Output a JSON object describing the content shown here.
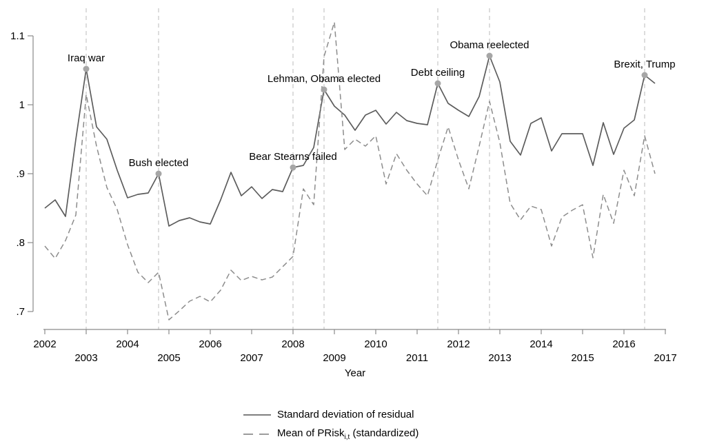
{
  "figure": {
    "background": "#ffffff"
  },
  "legend": {
    "items": [
      {
        "label": "Standard deviation of residual",
        "style": "solid"
      },
      {
        "label_pre": "Mean of PRisk",
        "label_sub": "i,t",
        "label_post": " (standardized)",
        "style": "dashed"
      }
    ]
  },
  "chart_data": {
    "type": "line",
    "title": "",
    "xlabel": "Year",
    "ylabel": "",
    "grid": false,
    "legend_position": "bottom-center",
    "x_start": 2002.0,
    "x_step_years": 0.25,
    "x_unit": "quarter",
    "x_axis": {
      "ticks": [
        2002,
        2003,
        2004,
        2005,
        2006,
        2007,
        2008,
        2009,
        2010,
        2011,
        2012,
        2013,
        2014,
        2015,
        2016,
        2017
      ],
      "tick_labels": [
        "2002",
        "2003",
        "2004",
        "2005",
        "2006",
        "2007",
        "2008",
        "2009",
        "2010",
        "2011",
        "2012",
        "2013",
        "2014",
        "2015",
        "2016",
        "2017"
      ],
      "label_rows": "alternating"
    },
    "y_axis": {
      "ticks": [
        1.1,
        1.0,
        0.9,
        0.8,
        0.7
      ],
      "tick_labels": [
        "1.1",
        "1",
        ".9",
        ".8",
        ".7"
      ],
      "range": [
        0.68,
        1.13
      ]
    },
    "series": [
      {
        "name": "Standard deviation of residual",
        "line_style": "solid",
        "color": "#5c5c5c",
        "values": [
          0.85,
          0.862,
          0.838,
          0.95,
          1.052,
          0.968,
          0.95,
          0.905,
          0.865,
          0.87,
          0.872,
          0.9,
          0.824,
          0.832,
          0.836,
          0.83,
          0.827,
          0.862,
          0.902,
          0.868,
          0.881,
          0.864,
          0.877,
          0.874,
          0.909,
          0.912,
          0.938,
          1.022,
          0.998,
          0.985,
          0.963,
          0.985,
          0.992,
          0.972,
          0.989,
          0.977,
          0.973,
          0.971,
          1.031,
          1.002,
          0.992,
          0.983,
          1.012,
          1.071,
          1.033,
          0.947,
          0.927,
          0.973,
          0.981,
          0.933,
          0.958,
          0.958,
          0.958,
          0.912,
          0.974,
          0.928,
          0.966,
          0.978,
          1.043,
          1.031
        ]
      },
      {
        "name": "Mean of PRisk_i,t (standardized)",
        "line_style": "dashed",
        "color": "#8c8c8c",
        "values": [
          0.795,
          0.777,
          0.803,
          0.84,
          1.015,
          0.94,
          0.88,
          0.848,
          0.797,
          0.757,
          0.742,
          0.757,
          0.688,
          0.701,
          0.715,
          0.722,
          0.714,
          0.731,
          0.76,
          0.745,
          0.751,
          0.746,
          0.75,
          0.765,
          0.78,
          0.878,
          0.855,
          1.07,
          1.12,
          0.935,
          0.95,
          0.94,
          0.955,
          0.885,
          0.929,
          0.905,
          0.885,
          0.868,
          0.92,
          0.968,
          0.92,
          0.878,
          0.94,
          1.005,
          0.945,
          0.857,
          0.833,
          0.853,
          0.848,
          0.795,
          0.837,
          0.847,
          0.855,
          0.778,
          0.87,
          0.828,
          0.905,
          0.868,
          0.955,
          0.9
        ]
      }
    ],
    "events": [
      {
        "label": "Iraq war",
        "x": 2003.0,
        "y": 1.052
      },
      {
        "label": "Bush elected",
        "x": 2004.75,
        "y": 0.9
      },
      {
        "label": "Bear Stearns failed",
        "x": 2008.0,
        "y": 0.909
      },
      {
        "label": "Lehman, Obama elected",
        "x": 2008.75,
        "y": 1.022
      },
      {
        "label": "Debt ceiling",
        "x": 2011.5,
        "y": 1.031
      },
      {
        "label": "Obama reelected",
        "x": 2012.75,
        "y": 1.071
      },
      {
        "label": "Brexit, Trump",
        "x": 2016.5,
        "y": 1.043
      }
    ],
    "colors": {
      "event_line": "#c6c6c6",
      "marker": "#a6a6a6",
      "axis": "#8a8a8a",
      "text": "#000000"
    }
  }
}
